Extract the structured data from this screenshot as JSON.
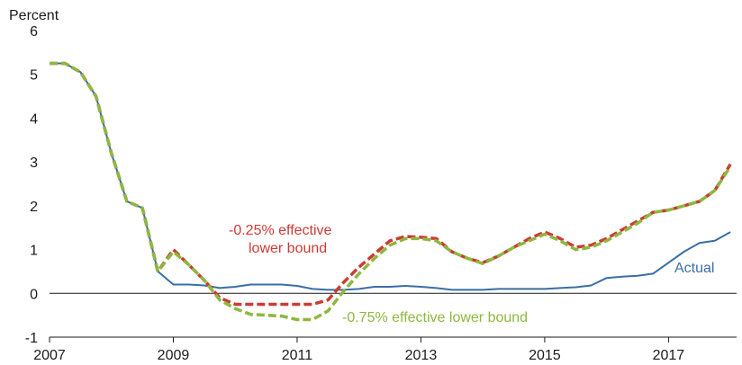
{
  "chart_data": {
    "type": "line",
    "ylabel": "Percent",
    "xlim": [
      2007,
      2018.1
    ],
    "ylim": [
      -1,
      6
    ],
    "y_ticks": [
      "-1",
      "0",
      "1",
      "2",
      "3",
      "4",
      "5",
      "6"
    ],
    "x_ticks": [
      "2007",
      "2009",
      "2011",
      "2013",
      "2015",
      "2017"
    ],
    "grid": false,
    "zero_line": true,
    "series": [
      {
        "name": "Actual",
        "color": "#3a6ea5",
        "style": "solid",
        "x": [
          2007.0,
          2007.25,
          2007.5,
          2007.75,
          2008.0,
          2008.25,
          2008.5,
          2008.75,
          2009.0,
          2009.25,
          2009.5,
          2009.75,
          2010.0,
          2010.25,
          2010.5,
          2010.75,
          2011.0,
          2011.25,
          2011.5,
          2011.75,
          2012.0,
          2012.25,
          2012.5,
          2012.75,
          2013.0,
          2013.25,
          2013.5,
          2013.75,
          2014.0,
          2014.25,
          2014.5,
          2014.75,
          2015.0,
          2015.25,
          2015.5,
          2015.75,
          2016.0,
          2016.25,
          2016.5,
          2016.75,
          2017.0,
          2017.25,
          2017.5,
          2017.75,
          2018.0
        ],
        "values": [
          5.25,
          5.25,
          5.05,
          4.5,
          3.2,
          2.1,
          1.95,
          0.5,
          0.2,
          0.2,
          0.18,
          0.12,
          0.15,
          0.2,
          0.2,
          0.2,
          0.17,
          0.1,
          0.08,
          0.08,
          0.1,
          0.15,
          0.15,
          0.17,
          0.15,
          0.12,
          0.08,
          0.08,
          0.08,
          0.1,
          0.1,
          0.1,
          0.1,
          0.12,
          0.14,
          0.18,
          0.35,
          0.38,
          0.4,
          0.45,
          0.7,
          0.95,
          1.15,
          1.2,
          1.4
        ]
      },
      {
        "name": "-0.25% effective lower bound",
        "color": "#cc3b33",
        "style": "dashed",
        "x": [
          2007.0,
          2007.25,
          2007.5,
          2007.75,
          2008.0,
          2008.25,
          2008.5,
          2008.75,
          2009.0,
          2009.25,
          2009.5,
          2009.75,
          2010.0,
          2010.25,
          2010.5,
          2010.75,
          2011.0,
          2011.25,
          2011.5,
          2011.75,
          2012.0,
          2012.25,
          2012.5,
          2012.75,
          2013.0,
          2013.25,
          2013.5,
          2013.75,
          2014.0,
          2014.25,
          2014.5,
          2014.75,
          2015.0,
          2015.25,
          2015.5,
          2015.75,
          2016.0,
          2016.25,
          2016.5,
          2016.75,
          2017.0,
          2017.25,
          2017.5,
          2017.75,
          2018.0
        ],
        "values": [
          5.25,
          5.25,
          5.05,
          4.5,
          3.2,
          2.1,
          1.95,
          0.5,
          1.0,
          0.65,
          0.3,
          -0.1,
          -0.25,
          -0.25,
          -0.25,
          -0.25,
          -0.25,
          -0.25,
          -0.15,
          0.25,
          0.6,
          0.9,
          1.2,
          1.3,
          1.28,
          1.25,
          0.95,
          0.8,
          0.7,
          0.85,
          1.05,
          1.25,
          1.4,
          1.25,
          1.05,
          1.1,
          1.25,
          1.45,
          1.65,
          1.85,
          1.9,
          2.0,
          2.1,
          2.35,
          2.95
        ]
      },
      {
        "name": "-0.75% effective lower bound",
        "color": "#8db83f",
        "style": "dashed",
        "x": [
          2007.0,
          2007.25,
          2007.5,
          2007.75,
          2008.0,
          2008.25,
          2008.5,
          2008.75,
          2009.0,
          2009.25,
          2009.5,
          2009.75,
          2010.0,
          2010.25,
          2010.5,
          2010.75,
          2011.0,
          2011.25,
          2011.5,
          2011.75,
          2012.0,
          2012.25,
          2012.5,
          2012.75,
          2013.0,
          2013.25,
          2013.5,
          2013.75,
          2014.0,
          2014.25,
          2014.5,
          2014.75,
          2015.0,
          2015.25,
          2015.5,
          2015.75,
          2016.0,
          2016.25,
          2016.5,
          2016.75,
          2017.0,
          2017.25,
          2017.5,
          2017.75,
          2018.0
        ],
        "values": [
          5.25,
          5.25,
          5.05,
          4.5,
          3.2,
          2.1,
          1.95,
          0.5,
          0.95,
          0.65,
          0.3,
          -0.15,
          -0.35,
          -0.48,
          -0.5,
          -0.52,
          -0.6,
          -0.6,
          -0.4,
          0.05,
          0.45,
          0.8,
          1.1,
          1.25,
          1.25,
          1.2,
          0.95,
          0.8,
          0.68,
          0.85,
          1.05,
          1.2,
          1.35,
          1.2,
          1.0,
          1.05,
          1.2,
          1.4,
          1.6,
          1.85,
          1.9,
          2.0,
          2.1,
          2.35,
          2.9
        ]
      }
    ],
    "annotations": {
      "red_line1": "-0.25% effective",
      "red_line2": "lower bound",
      "green": "-0.75% effective lower bound",
      "actual": "Actual"
    }
  }
}
